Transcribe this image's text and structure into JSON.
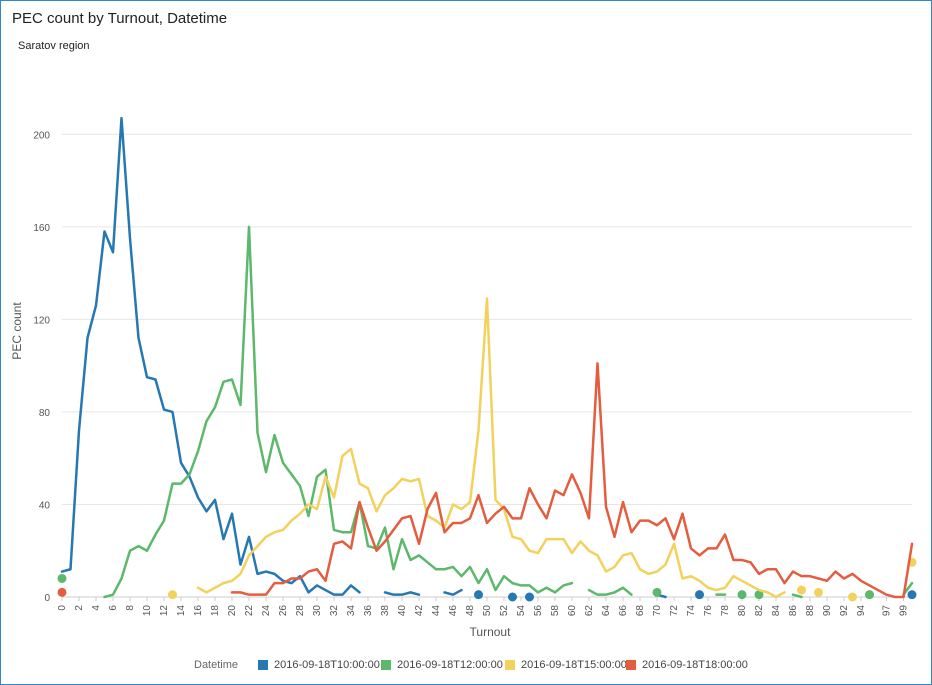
{
  "title": "PEC count by Turnout, Datetime",
  "subtitle": "Saratov region",
  "chart_data": {
    "type": "line",
    "xlabel": "Turnout",
    "ylabel": "PEC count",
    "xlim": [
      0,
      100
    ],
    "ylim": [
      0,
      220
    ],
    "yticks": [
      0,
      40,
      80,
      120,
      160,
      200
    ],
    "xticks": [
      0,
      2,
      4,
      6,
      8,
      10,
      12,
      14,
      16,
      18,
      20,
      22,
      24,
      26,
      28,
      30,
      32,
      34,
      36,
      38,
      40,
      42,
      44,
      46,
      48,
      50,
      52,
      54,
      56,
      58,
      60,
      62,
      64,
      66,
      68,
      70,
      72,
      74,
      76,
      78,
      80,
      82,
      84,
      86,
      88,
      90,
      92,
      94,
      97,
      99
    ],
    "grid": true,
    "legend_title": "Datetime",
    "legend_position": "bottom",
    "series": [
      {
        "name": "2016-09-18T10:00:00",
        "color": "#2678b2",
        "values": [
          11,
          12,
          72,
          112,
          126,
          158,
          149,
          207,
          155,
          112,
          95,
          94,
          81,
          80,
          58,
          52,
          43,
          37,
          42,
          25,
          36,
          14,
          26,
          10,
          11,
          10,
          7,
          6,
          9,
          2,
          5,
          3,
          1,
          1,
          5,
          2,
          null,
          null,
          2,
          1,
          1,
          2,
          1,
          null,
          null,
          2,
          1,
          3,
          null,
          1,
          null,
          null,
          null,
          0,
          null,
          0,
          null,
          null,
          null,
          null,
          null,
          null,
          null,
          null,
          null,
          null,
          null,
          null,
          null,
          null,
          1,
          0,
          null,
          null,
          null,
          1,
          null,
          null,
          null,
          null,
          null,
          null,
          null,
          null,
          null,
          null,
          null,
          null,
          null,
          null,
          null,
          null,
          null,
          null,
          null,
          null,
          null,
          null,
          null,
          null,
          1
        ]
      },
      {
        "name": "2016-09-18T12:00:00",
        "color": "#5cb86b",
        "values": [
          8,
          null,
          null,
          null,
          null,
          0,
          1,
          8,
          20,
          22,
          20,
          27,
          33,
          49,
          49,
          53,
          63,
          76,
          82,
          93,
          94,
          83,
          160,
          71,
          54,
          70,
          58,
          53,
          48,
          35,
          52,
          55,
          29,
          28,
          28,
          41,
          22,
          21,
          30,
          12,
          25,
          16,
          18,
          15,
          12,
          12,
          13,
          9,
          13,
          6,
          12,
          3,
          9,
          6,
          5,
          5,
          2,
          4,
          2,
          5,
          6,
          null,
          3,
          1,
          1,
          2,
          4,
          1,
          null,
          null,
          2,
          null,
          null,
          null,
          null,
          null,
          null,
          1,
          1,
          null,
          1,
          null,
          1,
          null,
          null,
          null,
          1,
          0,
          null,
          null,
          null,
          null,
          null,
          null,
          null,
          1,
          null,
          null,
          null,
          1,
          6
        ]
      },
      {
        "name": "2016-09-18T15:00:00",
        "color": "#f2d15c",
        "values": [
          null,
          null,
          null,
          null,
          null,
          null,
          null,
          null,
          null,
          null,
          null,
          null,
          null,
          1,
          null,
          null,
          4,
          2,
          4,
          6,
          7,
          10,
          18,
          22,
          26,
          28,
          29,
          33,
          36,
          40,
          38,
          52,
          43,
          61,
          64,
          49,
          47,
          37,
          44,
          47,
          51,
          50,
          51,
          35,
          33,
          30,
          40,
          38,
          41,
          72,
          129,
          42,
          38,
          26,
          25,
          20,
          19,
          25,
          25,
          25,
          19,
          24,
          20,
          18,
          11,
          13,
          18,
          19,
          12,
          10,
          11,
          14,
          23,
          8,
          9,
          7,
          4,
          3,
          4,
          9,
          7,
          5,
          3,
          2,
          0,
          2,
          null,
          3,
          null,
          2,
          null,
          null,
          null,
          0,
          null,
          null,
          null,
          null,
          null,
          null,
          15
        ]
      },
      {
        "name": "2016-09-18T18:00:00",
        "color": "#e35d3e",
        "values": [
          2,
          null,
          null,
          null,
          null,
          null,
          null,
          null,
          null,
          null,
          null,
          null,
          null,
          null,
          null,
          null,
          null,
          null,
          null,
          null,
          2,
          2,
          1,
          1,
          1,
          6,
          6,
          8,
          8,
          11,
          12,
          7,
          23,
          24,
          21,
          41,
          30,
          20,
          24,
          29,
          34,
          35,
          23,
          38,
          45,
          28,
          32,
          32,
          34,
          44,
          32,
          36,
          39,
          34,
          34,
          47,
          40,
          34,
          46,
          44,
          53,
          45,
          34,
          101,
          39,
          26,
          41,
          28,
          33,
          33,
          31,
          34,
          25,
          36,
          21,
          18,
          21,
          21,
          27,
          16,
          16,
          15,
          10,
          12,
          12,
          6,
          11,
          9,
          9,
          8,
          7,
          11,
          8,
          10,
          7,
          5,
          3,
          1,
          0,
          0,
          23
        ]
      }
    ]
  }
}
